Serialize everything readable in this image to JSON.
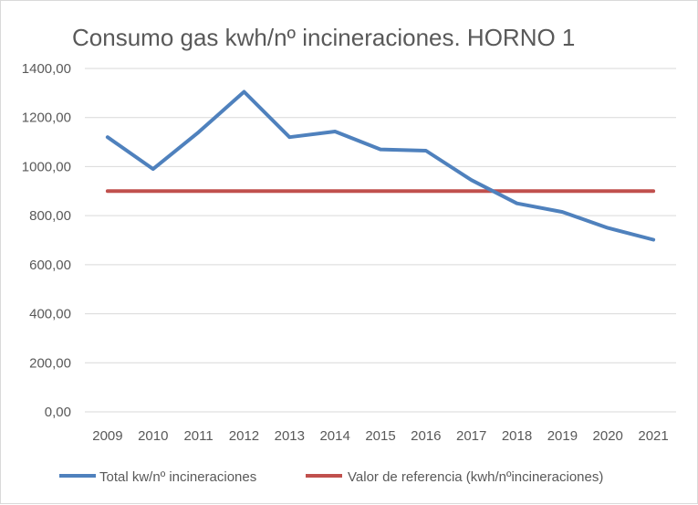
{
  "chart_data": {
    "type": "line",
    "title": "Consumo gas kwh/nº incineraciones. HORNO 1",
    "xlabel": "",
    "ylabel": "",
    "categories": [
      "2009",
      "2010",
      "2011",
      "2012",
      "2013",
      "2014",
      "2015",
      "2016",
      "2017",
      "2018",
      "2019",
      "2020",
      "2021"
    ],
    "ylim": [
      0,
      1400
    ],
    "ytick_values": [
      0,
      200,
      400,
      600,
      800,
      1000,
      1200,
      1400
    ],
    "ytick_labels": [
      "0,00",
      "200,00",
      "400,00",
      "600,00",
      "800,00",
      "1000,00",
      "1200,00",
      "1400,00"
    ],
    "grid": true,
    "legend_position": "bottom",
    "series": [
      {
        "name": "Total kw/nº incineraciones",
        "color": "#4f81bd",
        "values": [
          1120,
          990,
          1140,
          1305,
          1120,
          1143,
          1070,
          1065,
          945,
          850,
          815,
          750,
          702
        ]
      },
      {
        "name": "Valor de referencia (kwh/nºincineraciones)",
        "color": "#c0504d",
        "values": [
          900,
          900,
          900,
          900,
          900,
          900,
          900,
          900,
          900,
          900,
          900,
          900,
          900
        ]
      }
    ]
  }
}
